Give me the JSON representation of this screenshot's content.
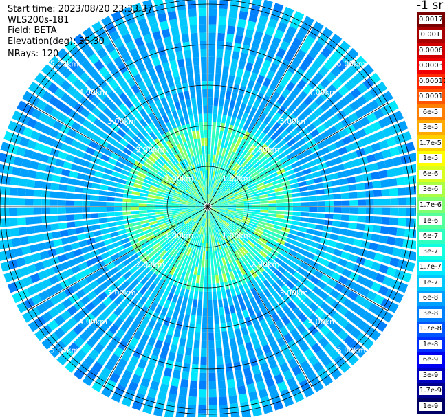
{
  "header": {
    "start_time": "Start time: 2023/08/20 23:33:37",
    "instrument": "WLS200s-181",
    "field": "Field: BETA",
    "elevation": "Elevation(deg): 35.30",
    "nrays": "NRays: 120"
  },
  "colorbar": {
    "unit_title": "-1 sr",
    "levels": [
      {
        "label": "0.0017",
        "color": "#7a0000"
      },
      {
        "label": "0.001",
        "color": "#a80000"
      },
      {
        "label": "0.0006",
        "color": "#d00000"
      },
      {
        "label": "0.0003",
        "color": "#f00000"
      },
      {
        "label": "0.00017",
        "color": "#ff2a00"
      },
      {
        "label": "0.0001",
        "color": "#ff5500"
      },
      {
        "label": "6e-5",
        "color": "#ff8000"
      },
      {
        "label": "3e-5",
        "color": "#ffaa00"
      },
      {
        "label": "1.7e-5",
        "color": "#ffd000"
      },
      {
        "label": "1e-5",
        "color": "#ffff00"
      },
      {
        "label": "6e-6",
        "color": "#d8ff20"
      },
      {
        "label": "3e-6",
        "color": "#aaff44"
      },
      {
        "label": "1.7e-6",
        "color": "#80ff70"
      },
      {
        "label": "1e-6",
        "color": "#55ff99"
      },
      {
        "label": "6e-7",
        "color": "#30ffc0"
      },
      {
        "label": "3e-7",
        "color": "#10ffe0"
      },
      {
        "label": "1.7e-7",
        "color": "#00e8ff"
      },
      {
        "label": "1e-7",
        "color": "#00c8ff"
      },
      {
        "label": "6e-8",
        "color": "#00a0ff"
      },
      {
        "label": "3e-8",
        "color": "#0080ff"
      },
      {
        "label": "1.7e-8",
        "color": "#0055ff"
      },
      {
        "label": "1e-8",
        "color": "#0030ff"
      },
      {
        "label": "6e-9",
        "color": "#0000f0"
      },
      {
        "label": "3e-9",
        "color": "#0000c0"
      },
      {
        "label": "1.7e-9",
        "color": "#00008c"
      },
      {
        "label": "1e-9",
        "color": "#000064"
      }
    ]
  },
  "chart_data": {
    "type": "heatmap",
    "projection": "polar PPI scan",
    "nrays": 120,
    "range_rings_km": [
      1.0,
      2.0,
      3.0,
      4.0,
      5.0
    ],
    "ring_labels": [
      "1.00km",
      "2.00km",
      "3.00km",
      "4.00km",
      "5.00km"
    ],
    "spoke_angles_deg": [
      0,
      30,
      60,
      90,
      120,
      150,
      180,
      210,
      240,
      270,
      300,
      330
    ],
    "max_range_km": 6.4,
    "regions": [
      {
        "range_km": [
          0.0,
          2.0
        ],
        "beta_approx": "3e-7 to 1.7e-6"
      },
      {
        "range_km": [
          2.0,
          2.15
        ],
        "beta_approx": "1e-5 to 1e-4"
      },
      {
        "range_km": [
          2.15,
          6.4
        ],
        "beta_approx": "3e-8 to 1.7e-7"
      }
    ]
  }
}
